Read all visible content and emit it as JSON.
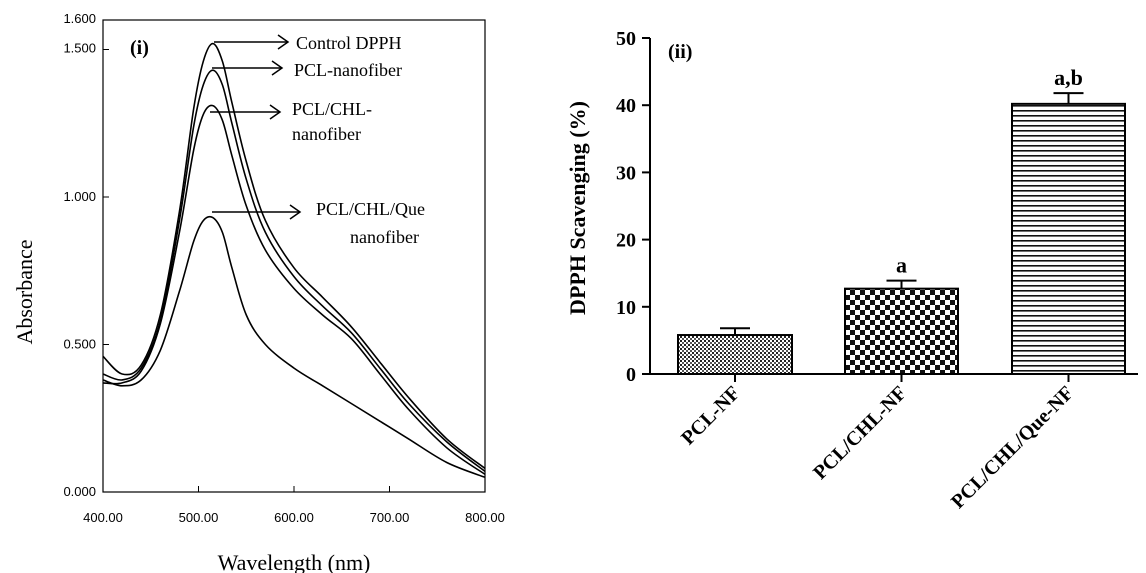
{
  "chart_data": [
    {
      "type": "line",
      "panel_label": "(i)",
      "xlabel": "Wavelength (nm)",
      "ylabel": "Absorbance",
      "xlim": [
        400,
        800
      ],
      "ylim": [
        0,
        1.6
      ],
      "xticks": [
        "400.00",
        "500.00",
        "600.00",
        "700.00",
        "800.00"
      ],
      "yticks": [
        "0.000",
        "0.500",
        "1.000",
        "1.500",
        "1.600"
      ],
      "series": [
        {
          "name": "Control DPPH",
          "x": [
            400,
            420,
            440,
            460,
            480,
            495,
            505,
            515,
            525,
            535,
            550,
            570,
            600,
            630,
            660,
            690,
            720,
            760,
            800
          ],
          "y": [
            0.46,
            0.4,
            0.43,
            0.6,
            0.95,
            1.3,
            1.46,
            1.52,
            1.46,
            1.32,
            1.12,
            0.92,
            0.76,
            0.66,
            0.56,
            0.44,
            0.32,
            0.18,
            0.08
          ]
        },
        {
          "name": "PCL-nanofiber",
          "x": [
            400,
            420,
            440,
            460,
            480,
            495,
            505,
            515,
            525,
            535,
            550,
            570,
            600,
            630,
            660,
            690,
            720,
            760,
            800
          ],
          "y": [
            0.4,
            0.38,
            0.42,
            0.58,
            0.92,
            1.24,
            1.38,
            1.43,
            1.38,
            1.25,
            1.06,
            0.88,
            0.73,
            0.63,
            0.54,
            0.42,
            0.3,
            0.17,
            0.07
          ]
        },
        {
          "name": "PCL/CHL-nanofiber",
          "x": [
            400,
            420,
            440,
            460,
            480,
            495,
            505,
            515,
            525,
            535,
            550,
            570,
            600,
            630,
            660,
            690,
            720,
            760,
            800
          ],
          "y": [
            0.37,
            0.37,
            0.41,
            0.57,
            0.88,
            1.16,
            1.28,
            1.31,
            1.26,
            1.14,
            0.97,
            0.82,
            0.69,
            0.6,
            0.52,
            0.4,
            0.28,
            0.15,
            0.06
          ]
        },
        {
          "name": "PCL/CHL/Que nanofiber",
          "x": [
            400,
            420,
            440,
            460,
            480,
            495,
            505,
            515,
            525,
            535,
            550,
            570,
            600,
            630,
            660,
            690,
            720,
            760,
            800
          ],
          "y": [
            0.38,
            0.36,
            0.38,
            0.48,
            0.68,
            0.85,
            0.92,
            0.93,
            0.88,
            0.76,
            0.6,
            0.5,
            0.42,
            0.36,
            0.3,
            0.24,
            0.18,
            0.1,
            0.05
          ]
        }
      ],
      "annotations": [
        {
          "text": "Control DPPH",
          "series": 0
        },
        {
          "text": "PCL-nanofiber",
          "series": 1
        },
        {
          "text": "PCL/CHL-",
          "text2": "nanofiber",
          "series": 2
        },
        {
          "text": "PCL/CHL/Que",
          "text2": "nanofiber",
          "series": 3
        }
      ]
    },
    {
      "type": "bar",
      "panel_label": "(ii)",
      "ylabel": "DPPH Scavenging (%)",
      "ylim": [
        0,
        50
      ],
      "yticks": [
        "0",
        "10",
        "20",
        "30",
        "40",
        "50"
      ],
      "categories": [
        "PCL-NF",
        "PCL/CHL-NF",
        "PCL/CHL/Que-NF"
      ],
      "values": [
        5.8,
        12.7,
        40.2
      ],
      "errors": [
        1.0,
        1.2,
        1.6
      ],
      "significance": [
        "",
        "a",
        "a,b"
      ],
      "fills": [
        "dots",
        "checker",
        "hstripes"
      ]
    }
  ]
}
